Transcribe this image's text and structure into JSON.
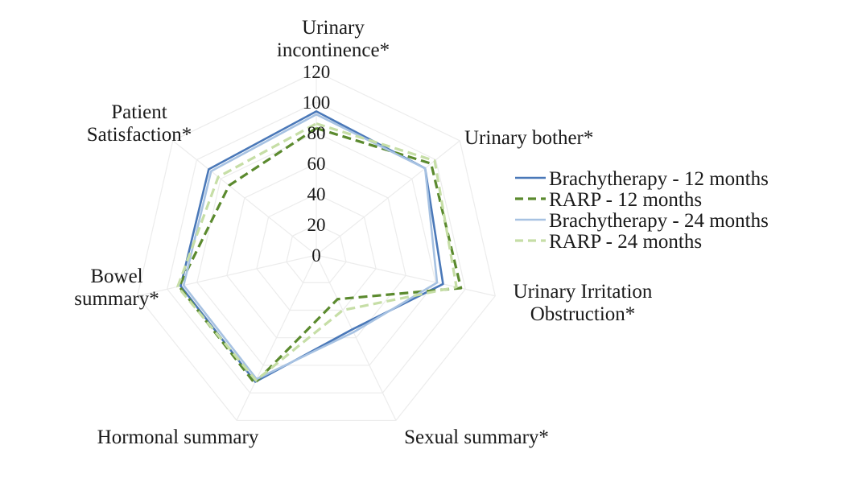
{
  "chart_data": {
    "type": "radar",
    "categories": [
      [
        "Urinary",
        "incontinence*"
      ],
      [
        "Urinary bother*"
      ],
      [
        "Urinary Irritation",
        "Obstruction*"
      ],
      [
        "Sexual summary*"
      ],
      [
        "Hormonal summary"
      ],
      [
        "Bowel",
        "summary*"
      ],
      [
        "Patient",
        "Satisfaction*"
      ]
    ],
    "rlim": [
      0,
      120
    ],
    "ticks": [
      "0",
      "20",
      "40",
      "60",
      "80",
      "100",
      "120"
    ],
    "tick_values": [
      0,
      20,
      40,
      60,
      80,
      100,
      120
    ],
    "grid": true,
    "legend_position": "right",
    "series": [
      {
        "name": "Brachytherapy - 12 months",
        "values": [
          94,
          91,
          85,
          54,
          92,
          91,
          90
        ],
        "color": "#4a78b8",
        "dash": "solid"
      },
      {
        "name": "RARP - 12 months",
        "values": [
          83,
          96,
          97,
          32,
          93,
          92,
          73
        ],
        "color": "#5b8a2e",
        "dash": "dashed"
      },
      {
        "name": "Brachytherapy - 24 months",
        "values": [
          92,
          91,
          81,
          56,
          90,
          89,
          88
        ],
        "color": "#a7c2e2",
        "dash": "solid"
      },
      {
        "name": "RARP - 24 months",
        "values": [
          86,
          99,
          94,
          40,
          91,
          93,
          82
        ],
        "color": "#c6dea6",
        "dash": "dashed"
      }
    ]
  }
}
